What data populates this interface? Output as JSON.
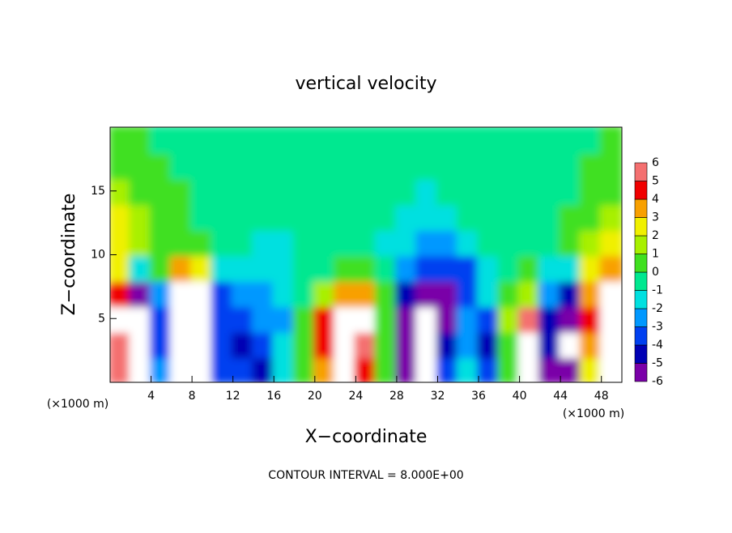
{
  "chart_data": {
    "type": "heatmap",
    "title": "vertical velocity",
    "x_label": "X−coordinate",
    "y_label": "Z−coordinate",
    "x_unit": "(×1000 m)",
    "x_unit_right": "(×1000 m)",
    "footer": "CONTOUR INTERVAL = 8.000E+00",
    "xlim": [
      0,
      50
    ],
    "ylim": [
      0,
      20
    ],
    "xticks": [
      4,
      8,
      12,
      16,
      20,
      24,
      28,
      32,
      36,
      40,
      44,
      48
    ],
    "yticks": [
      5,
      10,
      15
    ],
    "x": [
      1,
      3,
      5,
      7,
      9,
      11,
      13,
      15,
      17,
      19,
      21,
      23,
      25,
      27,
      29,
      31,
      33,
      35,
      37,
      39,
      41,
      43,
      45,
      47,
      49
    ],
    "y": [
      1,
      3,
      5,
      7,
      9,
      11,
      13,
      15,
      17,
      19
    ],
    "z": [
      [
        6,
        -8,
        -2,
        8,
        8,
        -3,
        -3,
        -4,
        -1,
        1,
        4,
        7,
        5,
        1,
        -5,
        -7,
        -3,
        -1,
        -3,
        1,
        7,
        -5,
        -6,
        3,
        8
      ],
      [
        6,
        -8,
        -3,
        8,
        8,
        -3,
        -4,
        -3,
        -1,
        1,
        5,
        8,
        6,
        1,
        -5,
        -8,
        -4,
        -2,
        -4,
        1,
        7,
        -4,
        -7,
        4,
        8
      ],
      [
        7,
        -8,
        -3,
        8,
        8,
        -3,
        -3,
        -2,
        -2,
        1,
        5,
        8,
        7,
        1,
        -5,
        -8,
        -5,
        -2,
        -3,
        2,
        6,
        -4,
        -6,
        5,
        8
      ],
      [
        5,
        -5,
        -2,
        7,
        7,
        -3,
        -2,
        -2,
        -1,
        0,
        2,
        4,
        4,
        1,
        -4,
        -5,
        -5,
        -3,
        -1,
        1,
        2,
        -2,
        -4,
        4,
        7
      ],
      [
        3,
        -1,
        1,
        4,
        3,
        -1,
        -1,
        -1,
        -1,
        0,
        0,
        1,
        1,
        0,
        -2,
        -3,
        -3,
        -3,
        -1,
        0,
        1,
        -1,
        -1,
        3,
        4
      ],
      [
        3,
        2,
        1,
        1,
        1,
        0,
        0,
        -1,
        -1,
        0,
        0,
        0,
        0,
        -1,
        -1,
        -2,
        -2,
        -1,
        0,
        0,
        0,
        0,
        1,
        2,
        3
      ],
      [
        3,
        2,
        1,
        1,
        0,
        0,
        0,
        0,
        0,
        0,
        0,
        0,
        0,
        0,
        -1,
        -1,
        -1,
        0,
        0,
        0,
        0,
        0,
        1,
        1,
        2
      ],
      [
        2,
        1,
        1,
        1,
        0,
        0,
        0,
        0,
        0,
        0,
        0,
        0,
        0,
        0,
        0,
        -1,
        0,
        0,
        0,
        0,
        0,
        0,
        0,
        1,
        1
      ],
      [
        1,
        1,
        1,
        0,
        0,
        0,
        0,
        0,
        0,
        0,
        0,
        0,
        0,
        0,
        0,
        0,
        0,
        0,
        0,
        0,
        0,
        0,
        0,
        1,
        1
      ],
      [
        1,
        1,
        0,
        0,
        0,
        0,
        0,
        0,
        0,
        0,
        0,
        0,
        0,
        0,
        0,
        0,
        0,
        0,
        0,
        0,
        0,
        0,
        0,
        0,
        1
      ]
    ],
    "levels": [
      -6,
      -5,
      -4,
      -3,
      -2,
      -1,
      0,
      1,
      2,
      3,
      4,
      5,
      6
    ],
    "colors": [
      "#7a00a8",
      "#0000b4",
      "#0040f0",
      "#0098ff",
      "#00e0e0",
      "#00e890",
      "#40e020",
      "#a8f000",
      "#f0f000",
      "#f8a000",
      "#f00000",
      "#f47070"
    ]
  }
}
